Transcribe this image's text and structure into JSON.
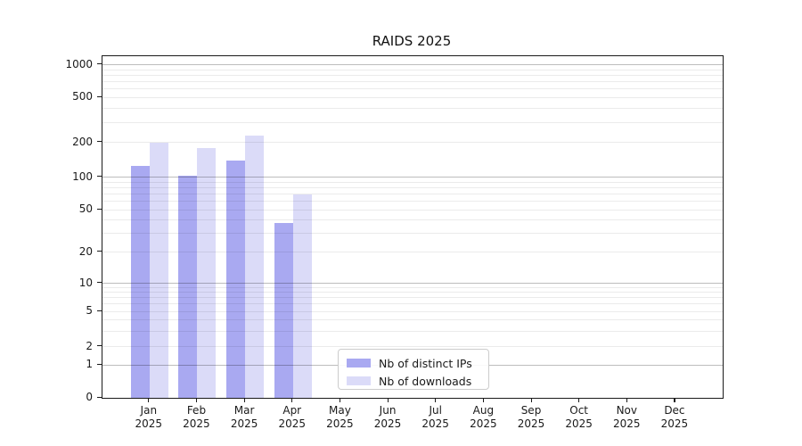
{
  "title": "RAIDS 2025",
  "chart_data": {
    "type": "bar",
    "title": "RAIDS 2025",
    "categories": [
      "Jan",
      "Feb",
      "Mar",
      "Apr",
      "May",
      "Jun",
      "Jul",
      "Aug",
      "Sep",
      "Oct",
      "Nov",
      "Dec"
    ],
    "year": "2025",
    "series": [
      {
        "name": "Nb of distinct IPs",
        "color": "#a9a9f1",
        "values": [
          125,
          104,
          140,
          38,
          0,
          0,
          0,
          0,
          0,
          0,
          0,
          0
        ]
      },
      {
        "name": "Nb of downloads",
        "color": "#dbdbf8",
        "values": [
          200,
          180,
          230,
          70,
          0,
          0,
          0,
          0,
          0,
          0,
          0,
          0
        ]
      }
    ],
    "y_ticks": [
      0,
      1,
      2,
      5,
      10,
      20,
      50,
      100,
      200,
      500,
      1000
    ],
    "y_scale": "symlog",
    "ylim": [
      0,
      1400
    ],
    "grid": true,
    "legend_position": "lower center",
    "colors": {
      "major_gridline": "rgba(0,0,0,0.26)",
      "minor_gridline": "rgba(0,0,0,0.08)",
      "axis": "#1a1a1a"
    }
  }
}
